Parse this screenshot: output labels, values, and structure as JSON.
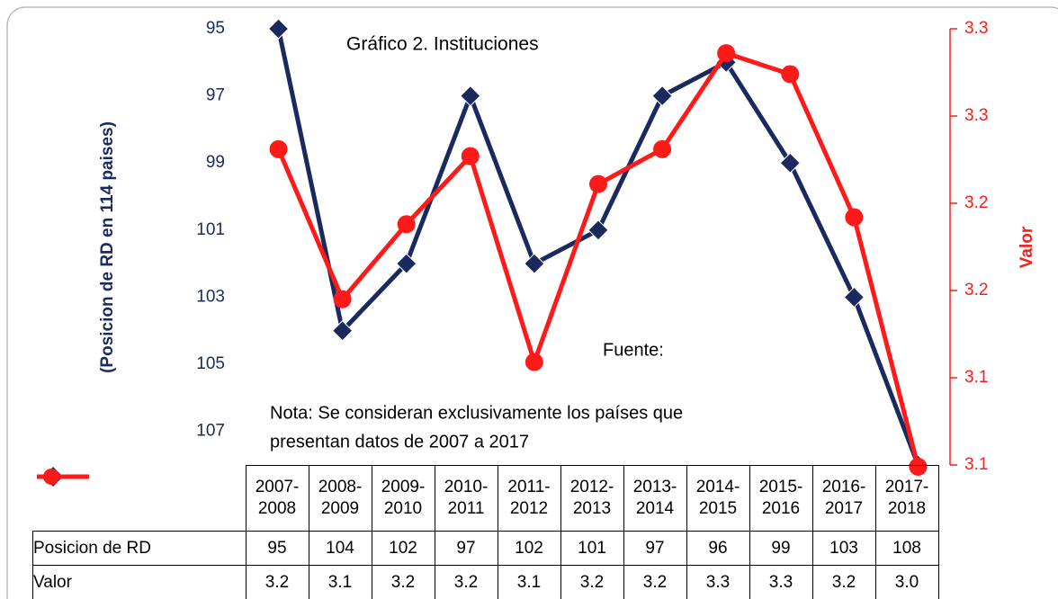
{
  "chart_data": {
    "type": "line",
    "title": "Gráfico  2. Instituciones",
    "annotations": [
      "Fuente:",
      "Nota: Se consideran exclusivamente los países que",
      "presentan datos de 2007 a 2017"
    ],
    "ylabel": "(Posicion de RD en 114 paises)",
    "y2label": "Valor",
    "categories": [
      "2007-2008",
      "2008-2009",
      "2009-2010",
      "2010-2011",
      "2011-2012",
      "2012-2013",
      "2013-2014",
      "2014-2015",
      "2015-2016",
      "2016-2017",
      "2017-2018"
    ],
    "ylim": [
      108,
      95
    ],
    "yticks": [
      95,
      97,
      99,
      101,
      103,
      105,
      107
    ],
    "y2lim": [
      3.05,
      3.3
    ],
    "y2ticks": [
      {
        "value": 3.3,
        "label": "3.3"
      },
      {
        "value": 3.25,
        "label": "3.3"
      },
      {
        "value": 3.2,
        "label": "3.2"
      },
      {
        "value": 3.15,
        "label": "3.2"
      },
      {
        "value": 3.1,
        "label": "3.1"
      },
      {
        "value": 3.05,
        "label": "3.1"
      }
    ],
    "series": [
      {
        "name": "Posicion de RD",
        "color": "#1a2a5e",
        "marker": "diamond",
        "values": [
          95,
          104,
          102,
          97,
          102,
          101,
          97,
          96,
          99,
          103,
          108
        ]
      },
      {
        "name": "Valor",
        "color": "#ff1a1a",
        "marker": "circle",
        "axis": "y2",
        "values": [
          3.231,
          3.145,
          3.188,
          3.227,
          3.109,
          3.211,
          3.231,
          3.286,
          3.274,
          3.192,
          3.049
        ],
        "value_labels": [
          "3.2",
          "3.1",
          "3.2",
          "3.2",
          "3.1",
          "3.2",
          "3.2",
          "3.3",
          "3.3",
          "3.2",
          "3.0"
        ]
      }
    ]
  }
}
